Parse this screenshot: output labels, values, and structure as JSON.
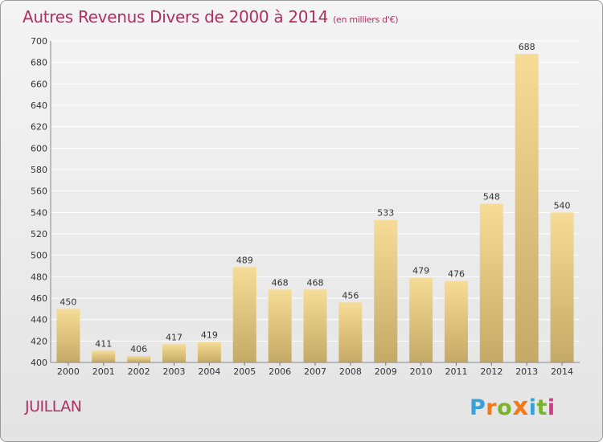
{
  "title": "Autres Revenus Divers de 2000 à 2014",
  "title_unit": "(en milliers d'€)",
  "city": "JUILLAN",
  "logo": {
    "letters": [
      "P",
      "r",
      "o",
      "x",
      "i",
      "t",
      "i"
    ],
    "colors": [
      "#3aa0d8",
      "#f07a1a",
      "#7ab32e",
      "#f07a1a",
      "#3aa0d8",
      "#7ab32e",
      "#d43a8a"
    ]
  },
  "colors": {
    "title": "#b03060",
    "bar_top": "#f6dc96",
    "bar_bottom": "#c4aa66",
    "grid": "#ffffff",
    "axis_text": "#333333"
  },
  "chart_data": {
    "type": "bar",
    "title": "Autres Revenus Divers de 2000 à 2014",
    "categories": [
      "2000",
      "2001",
      "2002",
      "2003",
      "2004",
      "2005",
      "2006",
      "2007",
      "2008",
      "2009",
      "2010",
      "2011",
      "2012",
      "2013",
      "2014"
    ],
    "values": [
      450,
      411,
      406,
      417,
      419,
      489,
      468,
      468,
      456,
      533,
      479,
      476,
      548,
      688,
      540
    ],
    "ylim": [
      400,
      700
    ],
    "yticks": [
      400,
      420,
      440,
      460,
      480,
      500,
      520,
      540,
      560,
      580,
      600,
      620,
      640,
      660,
      680,
      700
    ],
    "grid": true,
    "xlabel": "",
    "ylabel": ""
  }
}
